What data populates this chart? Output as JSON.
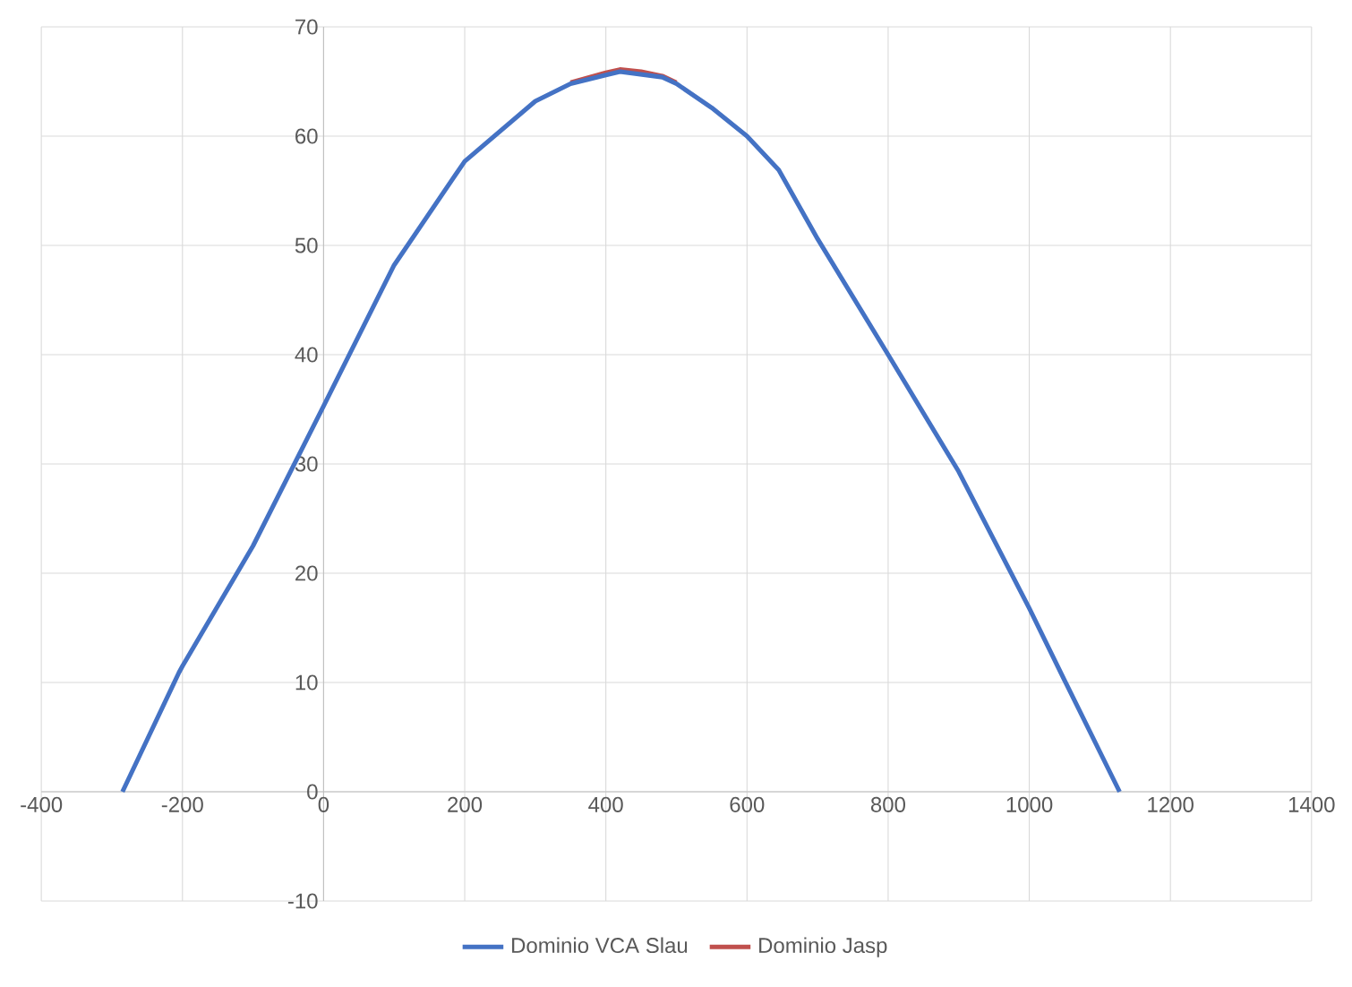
{
  "chart_data": {
    "type": "line",
    "series": [
      {
        "name": "Dominio VCA Slau",
        "color": "#4472c4",
        "x": [
          -285,
          -205,
          -200,
          -100,
          0,
          100,
          200,
          300,
          350,
          400,
          420,
          480,
          500,
          550,
          600,
          645,
          700,
          800,
          900,
          1000,
          1050,
          1128
        ],
        "values": [
          0,
          10.9,
          11.5,
          22.5,
          35.3,
          48.2,
          57.7,
          63.2,
          64.8,
          65.6,
          65.9,
          65.4,
          64.8,
          62.6,
          60.0,
          56.9,
          50.6,
          40.0,
          29.3,
          16.8,
          10.2,
          0
        ]
      },
      {
        "name": "Dominio Jasp",
        "color": "#c0504d",
        "x": [
          350,
          400,
          420,
          450,
          480,
          500
        ],
        "values": [
          64.9,
          65.8,
          66.1,
          65.9,
          65.5,
          64.9
        ]
      }
    ],
    "xlim": [
      -400,
      1400
    ],
    "ylim": [
      -10,
      70
    ],
    "xticks": [
      -400,
      -200,
      0,
      200,
      400,
      600,
      800,
      1000,
      1200,
      1400
    ],
    "yticks": [
      -10,
      0,
      10,
      20,
      30,
      40,
      50,
      60,
      70
    ],
    "grid": true,
    "legend": "bottom"
  }
}
